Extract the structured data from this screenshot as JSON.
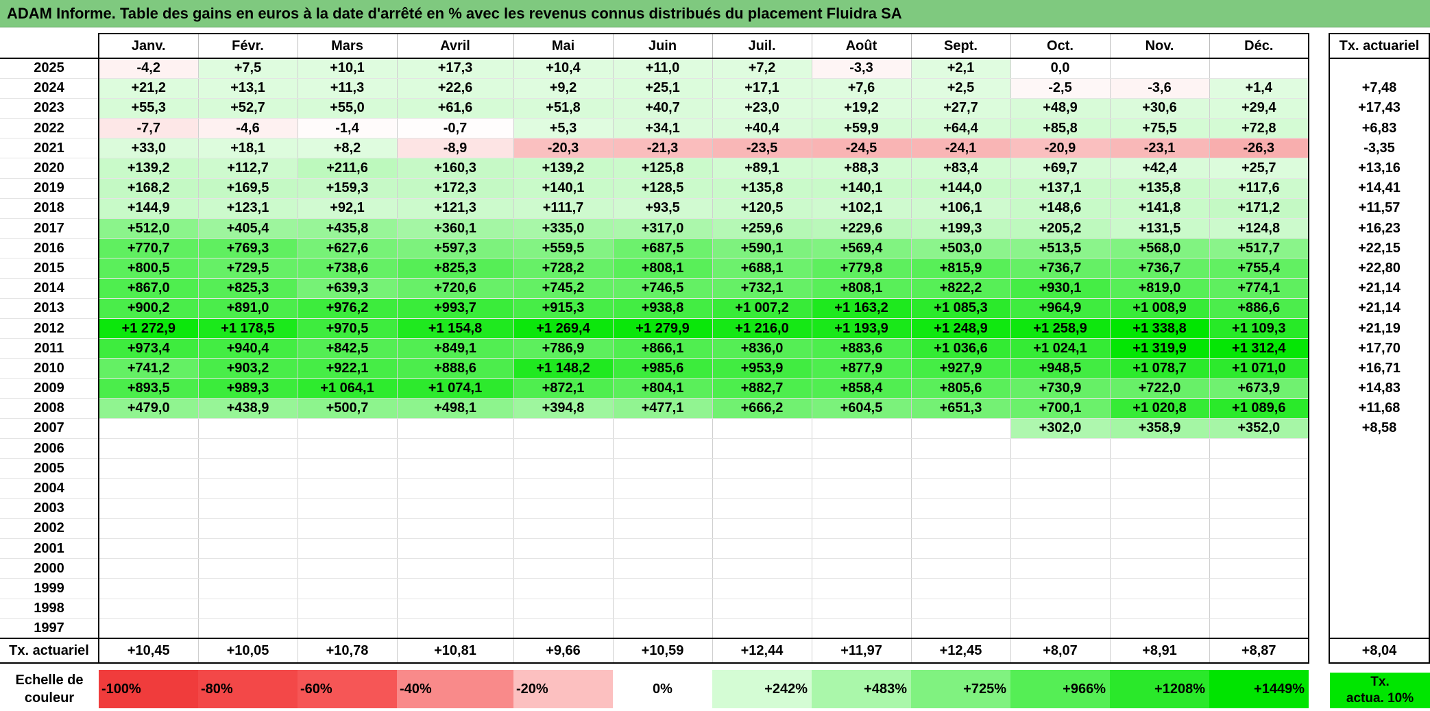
{
  "title": "ADAM Informe. Table des gains en euros à la date d'arrêté en % avec les revenus connus distribués du placement Fluidra SA",
  "months": [
    "Janv.",
    "Févr.",
    "Mars",
    "Avril",
    "Mai",
    "Juin",
    "Juil.",
    "Août",
    "Sept.",
    "Oct.",
    "Nov.",
    "Déc."
  ],
  "acte_header": "Tx. actuariel",
  "rows": [
    {
      "year": "2025",
      "values": [
        "-4,2",
        "+7,5",
        "+10,1",
        "+17,3",
        "+10,4",
        "+11,0",
        "+7,2",
        "-3,3",
        "+2,1",
        "0,0",
        "",
        ""
      ],
      "acte": ""
    },
    {
      "year": "2024",
      "values": [
        "+21,2",
        "+13,1",
        "+11,3",
        "+22,6",
        "+9,2",
        "+25,1",
        "+17,1",
        "+7,6",
        "+2,5",
        "-2,5",
        "-3,6",
        "+1,4"
      ],
      "acte": "+7,48"
    },
    {
      "year": "2023",
      "values": [
        "+55,3",
        "+52,7",
        "+55,0",
        "+61,6",
        "+51,8",
        "+40,7",
        "+23,0",
        "+19,2",
        "+27,7",
        "+48,9",
        "+30,6",
        "+29,4"
      ],
      "acte": "+17,43"
    },
    {
      "year": "2022",
      "values": [
        "-7,7",
        "-4,6",
        "-1,4",
        "-0,7",
        "+5,3",
        "+34,1",
        "+40,4",
        "+59,9",
        "+64,4",
        "+85,8",
        "+75,5",
        "+72,8"
      ],
      "acte": "+6,83"
    },
    {
      "year": "2021",
      "values": [
        "+33,0",
        "+18,1",
        "+8,2",
        "-8,9",
        "-20,3",
        "-21,3",
        "-23,5",
        "-24,5",
        "-24,1",
        "-20,9",
        "-23,1",
        "-26,3"
      ],
      "acte": "-3,35"
    },
    {
      "year": "2020",
      "values": [
        "+139,2",
        "+112,7",
        "+211,6",
        "+160,3",
        "+139,2",
        "+125,8",
        "+89,1",
        "+88,3",
        "+83,4",
        "+69,7",
        "+42,4",
        "+25,7"
      ],
      "acte": "+13,16"
    },
    {
      "year": "2019",
      "values": [
        "+168,2",
        "+169,5",
        "+159,3",
        "+172,3",
        "+140,1",
        "+128,5",
        "+135,8",
        "+140,1",
        "+144,0",
        "+137,1",
        "+135,8",
        "+117,6"
      ],
      "acte": "+14,41"
    },
    {
      "year": "2018",
      "values": [
        "+144,9",
        "+123,1",
        "+92,1",
        "+121,3",
        "+111,7",
        "+93,5",
        "+120,5",
        "+102,1",
        "+106,1",
        "+148,6",
        "+141,8",
        "+171,2"
      ],
      "acte": "+11,57"
    },
    {
      "year": "2017",
      "values": [
        "+512,0",
        "+405,4",
        "+435,8",
        "+360,1",
        "+335,0",
        "+317,0",
        "+259,6",
        "+229,6",
        "+199,3",
        "+205,2",
        "+131,5",
        "+124,8"
      ],
      "acte": "+16,23"
    },
    {
      "year": "2016",
      "values": [
        "+770,7",
        "+769,3",
        "+627,6",
        "+597,3",
        "+559,5",
        "+687,5",
        "+590,1",
        "+569,4",
        "+503,0",
        "+513,5",
        "+568,0",
        "+517,7"
      ],
      "acte": "+22,15"
    },
    {
      "year": "2015",
      "values": [
        "+800,5",
        "+729,5",
        "+738,6",
        "+825,3",
        "+728,2",
        "+808,1",
        "+688,1",
        "+779,8",
        "+815,9",
        "+736,7",
        "+736,7",
        "+755,4"
      ],
      "acte": "+22,80"
    },
    {
      "year": "2014",
      "values": [
        "+867,0",
        "+825,3",
        "+639,3",
        "+720,6",
        "+745,2",
        "+746,5",
        "+732,1",
        "+808,1",
        "+822,2",
        "+930,1",
        "+819,0",
        "+774,1"
      ],
      "acte": "+21,14"
    },
    {
      "year": "2013",
      "values": [
        "+900,2",
        "+891,0",
        "+976,2",
        "+993,7",
        "+915,3",
        "+938,8",
        "+1 007,2",
        "+1 163,2",
        "+1 085,3",
        "+964,9",
        "+1 008,9",
        "+886,6"
      ],
      "acte": "+21,14"
    },
    {
      "year": "2012",
      "values": [
        "+1 272,9",
        "+1 178,5",
        "+970,5",
        "+1 154,8",
        "+1 269,4",
        "+1 279,9",
        "+1 216,0",
        "+1 193,9",
        "+1 248,9",
        "+1 258,9",
        "+1 338,8",
        "+1 109,3"
      ],
      "acte": "+21,19"
    },
    {
      "year": "2011",
      "values": [
        "+973,4",
        "+940,4",
        "+842,5",
        "+849,1",
        "+786,9",
        "+866,1",
        "+836,0",
        "+883,6",
        "+1 036,6",
        "+1 024,1",
        "+1 319,9",
        "+1 312,4"
      ],
      "acte": "+17,70"
    },
    {
      "year": "2010",
      "values": [
        "+741,2",
        "+903,2",
        "+922,1",
        "+888,6",
        "+1 148,2",
        "+985,6",
        "+953,9",
        "+877,9",
        "+927,9",
        "+948,5",
        "+1 078,7",
        "+1 071,0"
      ],
      "acte": "+16,71"
    },
    {
      "year": "2009",
      "values": [
        "+893,5",
        "+989,3",
        "+1 064,1",
        "+1 074,1",
        "+872,1",
        "+804,1",
        "+882,7",
        "+858,4",
        "+805,6",
        "+730,9",
        "+722,0",
        "+673,9"
      ],
      "acte": "+14,83"
    },
    {
      "year": "2008",
      "values": [
        "+479,0",
        "+438,9",
        "+500,7",
        "+498,1",
        "+394,8",
        "+477,1",
        "+666,2",
        "+604,5",
        "+651,3",
        "+700,1",
        "+1 020,8",
        "+1 089,6"
      ],
      "acte": "+11,68"
    },
    {
      "year": "2007",
      "values": [
        "",
        "",
        "",
        "",
        "",
        "",
        "",
        "",
        "",
        "+302,0",
        "+358,9",
        "+352,0"
      ],
      "acte": "+8,58"
    },
    {
      "year": "2006",
      "values": [
        "",
        "",
        "",
        "",
        "",
        "",
        "",
        "",
        "",
        "",
        "",
        ""
      ],
      "acte": ""
    },
    {
      "year": "2005",
      "values": [
        "",
        "",
        "",
        "",
        "",
        "",
        "",
        "",
        "",
        "",
        "",
        ""
      ],
      "acte": ""
    },
    {
      "year": "2004",
      "values": [
        "",
        "",
        "",
        "",
        "",
        "",
        "",
        "",
        "",
        "",
        "",
        ""
      ],
      "acte": ""
    },
    {
      "year": "2003",
      "values": [
        "",
        "",
        "",
        "",
        "",
        "",
        "",
        "",
        "",
        "",
        "",
        ""
      ],
      "acte": ""
    },
    {
      "year": "2002",
      "values": [
        "",
        "",
        "",
        "",
        "",
        "",
        "",
        "",
        "",
        "",
        "",
        ""
      ],
      "acte": ""
    },
    {
      "year": "2001",
      "values": [
        "",
        "",
        "",
        "",
        "",
        "",
        "",
        "",
        "",
        "",
        "",
        ""
      ],
      "acte": ""
    },
    {
      "year": "2000",
      "values": [
        "",
        "",
        "",
        "",
        "",
        "",
        "",
        "",
        "",
        "",
        "",
        ""
      ],
      "acte": ""
    },
    {
      "year": "1999",
      "values": [
        "",
        "",
        "",
        "",
        "",
        "",
        "",
        "",
        "",
        "",
        "",
        ""
      ],
      "acte": ""
    },
    {
      "year": "1998",
      "values": [
        "",
        "",
        "",
        "",
        "",
        "",
        "",
        "",
        "",
        "",
        "",
        ""
      ],
      "acte": ""
    },
    {
      "year": "1997",
      "values": [
        "",
        "",
        "",
        "",
        "",
        "",
        "",
        "",
        "",
        "",
        "",
        ""
      ],
      "acte": ""
    }
  ],
  "footer": {
    "label": "Tx. actuariel",
    "values": [
      "+10,45",
      "+10,05",
      "+10,78",
      "+10,81",
      "+9,66",
      "+10,59",
      "+12,44",
      "+11,97",
      "+12,45",
      "+8,07",
      "+8,91",
      "+8,87"
    ],
    "acte": "+8,04"
  },
  "scale": {
    "label_line1": "Echelle de",
    "label_line2": "couleur",
    "items": [
      {
        "text": "-100%",
        "color": "#f03c3c",
        "kind": "neg"
      },
      {
        "text": "-80%",
        "color": "#f34848",
        "kind": "neg"
      },
      {
        "text": "-60%",
        "color": "#f65656",
        "kind": "neg"
      },
      {
        "text": "-40%",
        "color": "#f98a8a",
        "kind": "neg"
      },
      {
        "text": "-20%",
        "color": "#fcc0c0",
        "kind": "neg"
      },
      {
        "text": "0%",
        "color": "#ffffff",
        "kind": "zero"
      },
      {
        "text": "+242%",
        "color": "#d4fcd4",
        "kind": "pos"
      },
      {
        "text": "+483%",
        "color": "#aaf7aa",
        "kind": "pos"
      },
      {
        "text": "+725%",
        "color": "#80f280",
        "kind": "pos"
      },
      {
        "text": "+966%",
        "color": "#55ee55",
        "kind": "pos"
      },
      {
        "text": "+1208%",
        "color": "#2ae82a",
        "kind": "pos"
      },
      {
        "text": "+1449%",
        "color": "#00e400",
        "kind": "pos"
      }
    ],
    "acte_line1": "Tx.",
    "acte_line2": "actua. 10%",
    "acte_color": "#00e600"
  },
  "colors": {
    "title_bg": "#7fc97f",
    "max_pos_pct": 1449,
    "neg_base": "#ff0000"
  }
}
